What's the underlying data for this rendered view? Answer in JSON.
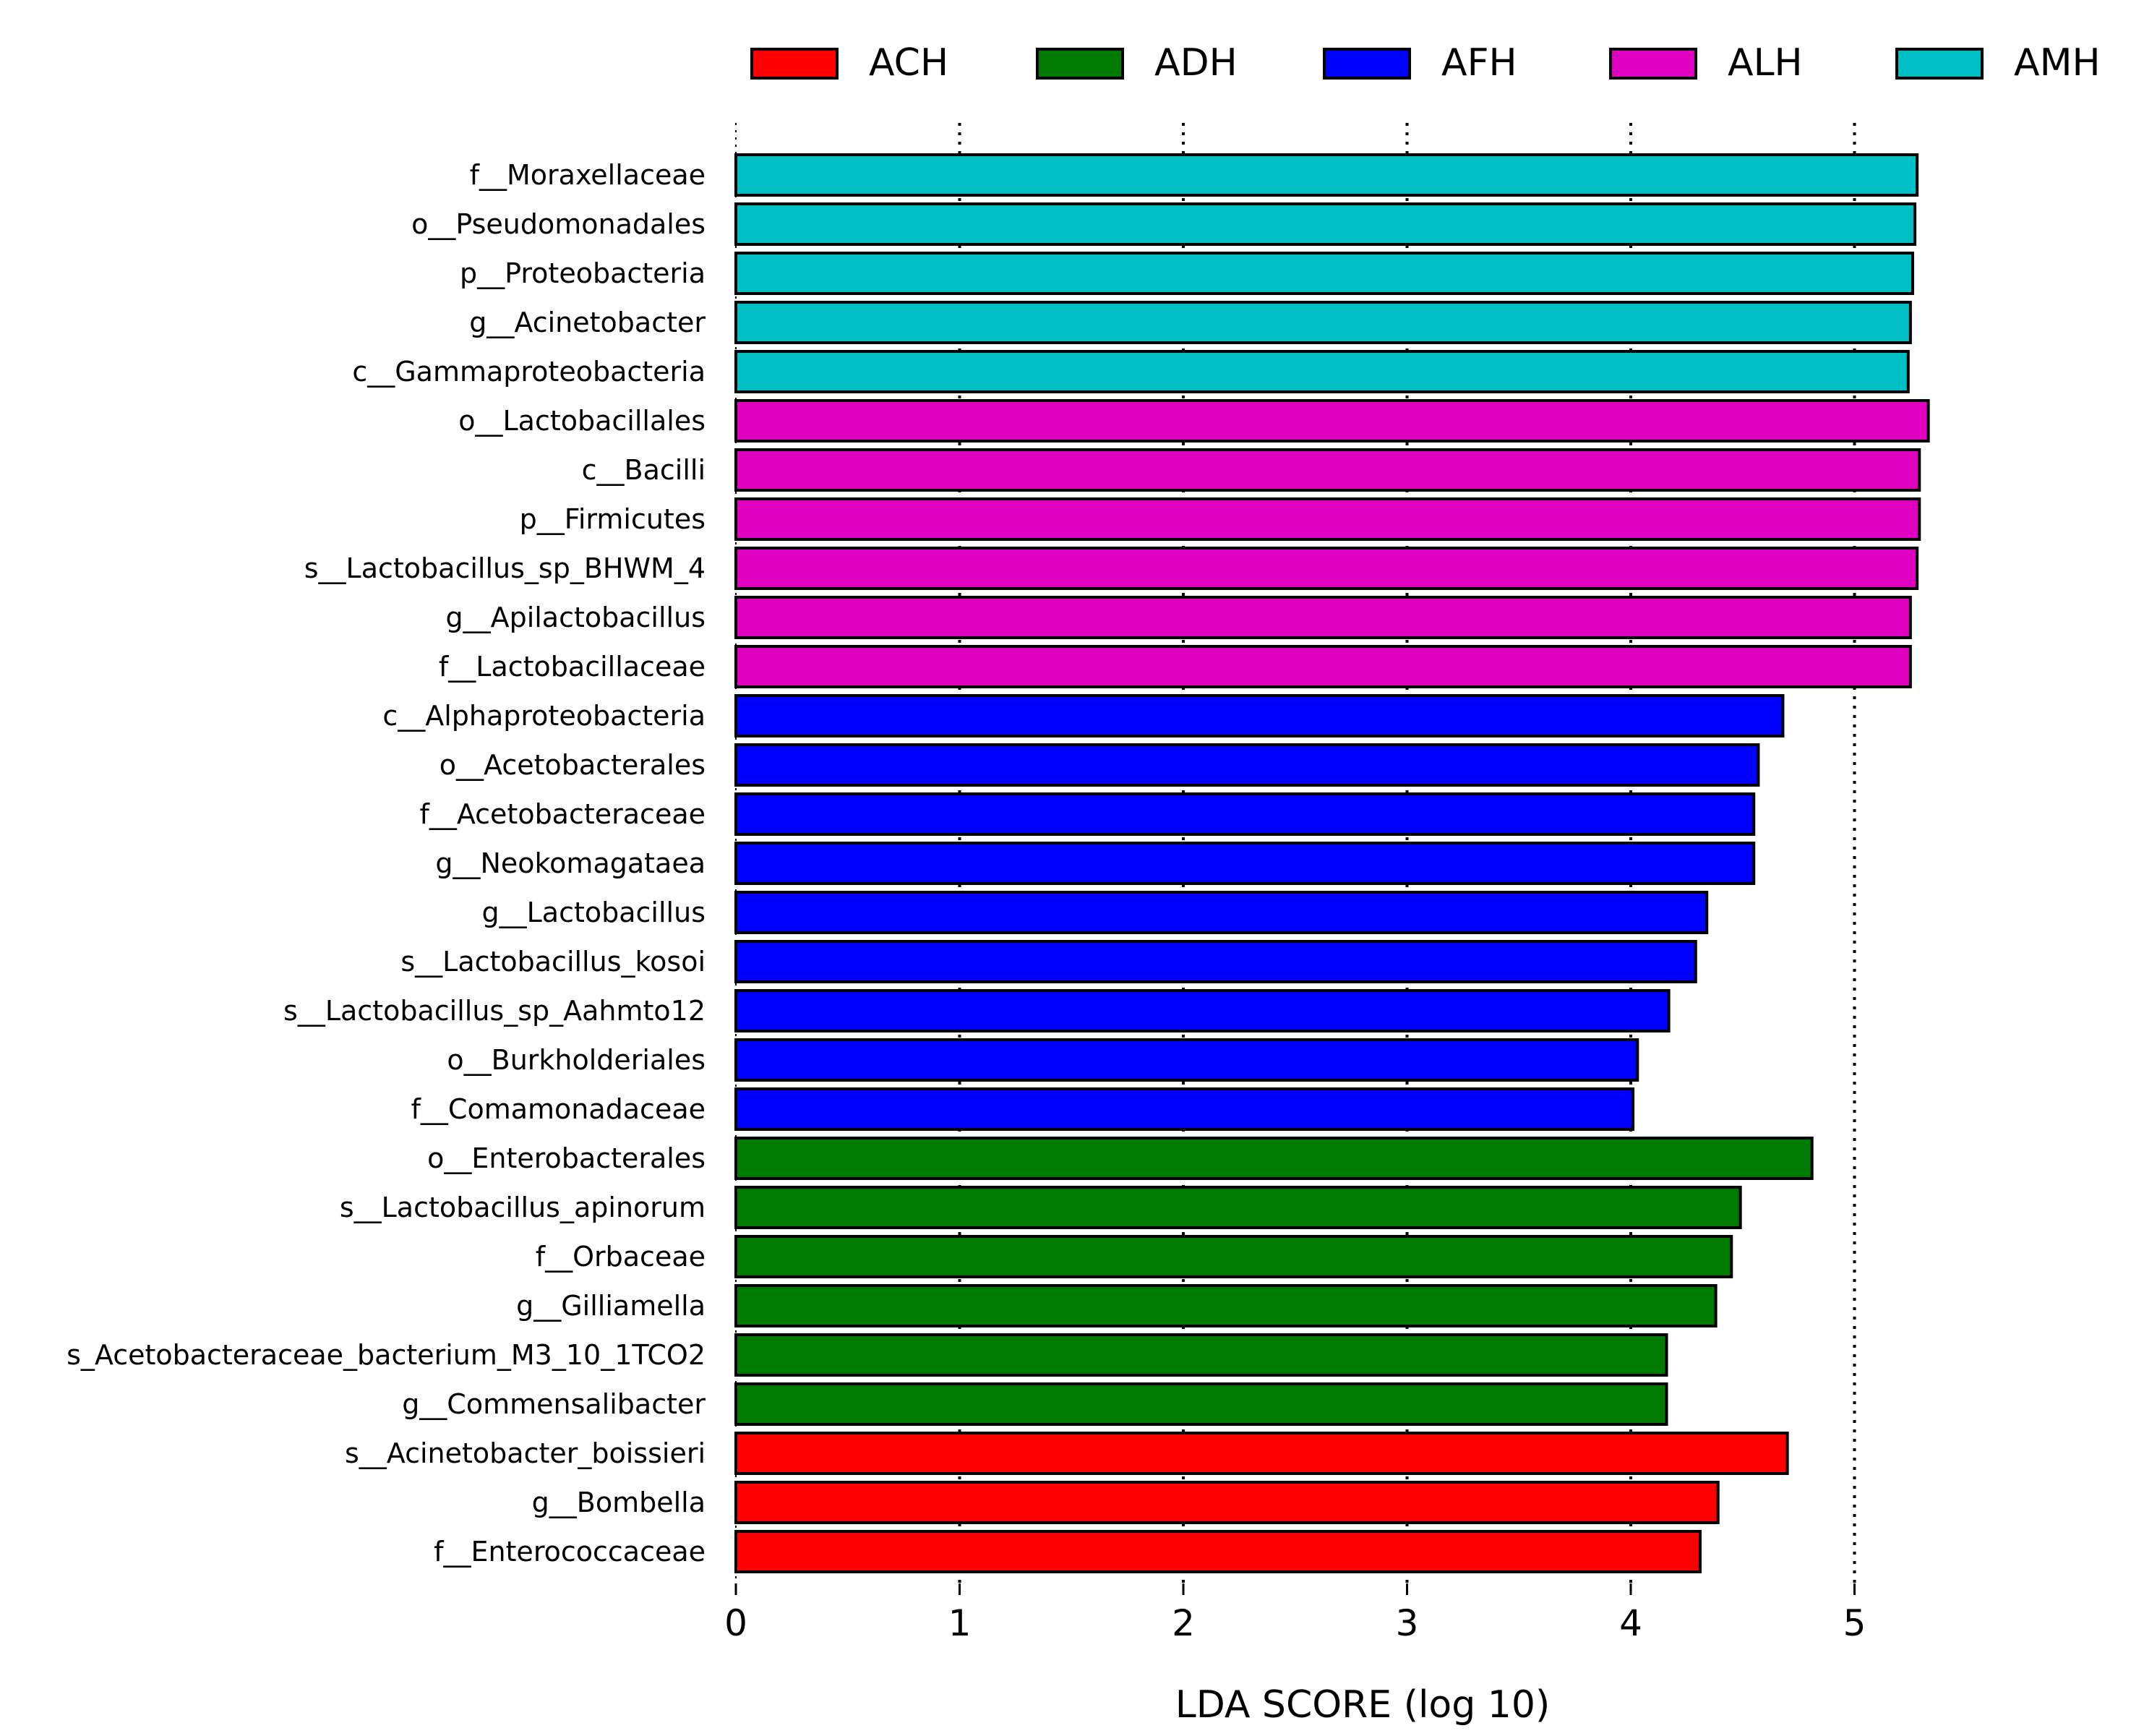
{
  "chart_data": {
    "type": "bar",
    "orientation": "horizontal",
    "title": "",
    "xlabel": "LDA SCORE (log 10)",
    "ylabel": "",
    "xlim": [
      0,
      5.45
    ],
    "xticks": [
      0,
      1,
      2,
      3,
      4,
      5
    ],
    "grid": "vertical dotted at ticks",
    "legend_position": "top",
    "groups": [
      {
        "name": "ACH",
        "color": "#ff0000"
      },
      {
        "name": "ADH",
        "color": "#007a00"
      },
      {
        "name": "AFH",
        "color": "#0000ff"
      },
      {
        "name": "ALH",
        "color": "#e000c0"
      },
      {
        "name": "AMH",
        "color": "#00bfc4"
      }
    ],
    "bars": [
      {
        "label": "f__Moraxellaceae",
        "value": 5.28,
        "group": "AMH"
      },
      {
        "label": "o__Pseudomonadales",
        "value": 5.27,
        "group": "AMH"
      },
      {
        "label": "p__Proteobacteria",
        "value": 5.26,
        "group": "AMH"
      },
      {
        "label": "g__Acinetobacter",
        "value": 5.25,
        "group": "AMH"
      },
      {
        "label": "c__Gammaproteobacteria",
        "value": 5.24,
        "group": "AMH"
      },
      {
        "label": "o__Lactobacillales",
        "value": 5.33,
        "group": "ALH"
      },
      {
        "label": "c__Bacilli",
        "value": 5.29,
        "group": "ALH"
      },
      {
        "label": "p__Firmicutes",
        "value": 5.29,
        "group": "ALH"
      },
      {
        "label": "s__Lactobacillus_sp_BHWM_4",
        "value": 5.28,
        "group": "ALH"
      },
      {
        "label": "g__Apilactobacillus",
        "value": 5.25,
        "group": "ALH"
      },
      {
        "label": "f__Lactobacillaceae",
        "value": 5.25,
        "group": "ALH"
      },
      {
        "label": "c__Alphaproteobacteria",
        "value": 4.68,
        "group": "AFH"
      },
      {
        "label": "o__Acetobacterales",
        "value": 4.57,
        "group": "AFH"
      },
      {
        "label": "f__Acetobacteraceae",
        "value": 4.55,
        "group": "AFH"
      },
      {
        "label": "g__Neokomagataea",
        "value": 4.55,
        "group": "AFH"
      },
      {
        "label": "g__Lactobacillus",
        "value": 4.34,
        "group": "AFH"
      },
      {
        "label": "s__Lactobacillus_kosoi",
        "value": 4.29,
        "group": "AFH"
      },
      {
        "label": "s__Lactobacillus_sp_Aahmto12",
        "value": 4.17,
        "group": "AFH"
      },
      {
        "label": "o__Burkholderiales",
        "value": 4.03,
        "group": "AFH"
      },
      {
        "label": "f__Comamonadaceae",
        "value": 4.01,
        "group": "AFH"
      },
      {
        "label": "o__Enterobacterales",
        "value": 4.81,
        "group": "ADH"
      },
      {
        "label": "s__Lactobacillus_apinorum",
        "value": 4.49,
        "group": "ADH"
      },
      {
        "label": "f__Orbaceae",
        "value": 4.45,
        "group": "ADH"
      },
      {
        "label": "g__Gilliamella",
        "value": 4.38,
        "group": "ADH"
      },
      {
        "label": "s_Acetobacteraceae_bacterium_M3_10_1TCO2",
        "value": 4.16,
        "group": "ADH"
      },
      {
        "label": "g__Commensalibacter",
        "value": 4.16,
        "group": "ADH"
      },
      {
        "label": "s__Acinetobacter_boissieri",
        "value": 4.7,
        "group": "ACH"
      },
      {
        "label": "g__Bombella",
        "value": 4.39,
        "group": "ACH"
      },
      {
        "label": "f__Enterococcaceae",
        "value": 4.31,
        "group": "ACH"
      }
    ]
  }
}
